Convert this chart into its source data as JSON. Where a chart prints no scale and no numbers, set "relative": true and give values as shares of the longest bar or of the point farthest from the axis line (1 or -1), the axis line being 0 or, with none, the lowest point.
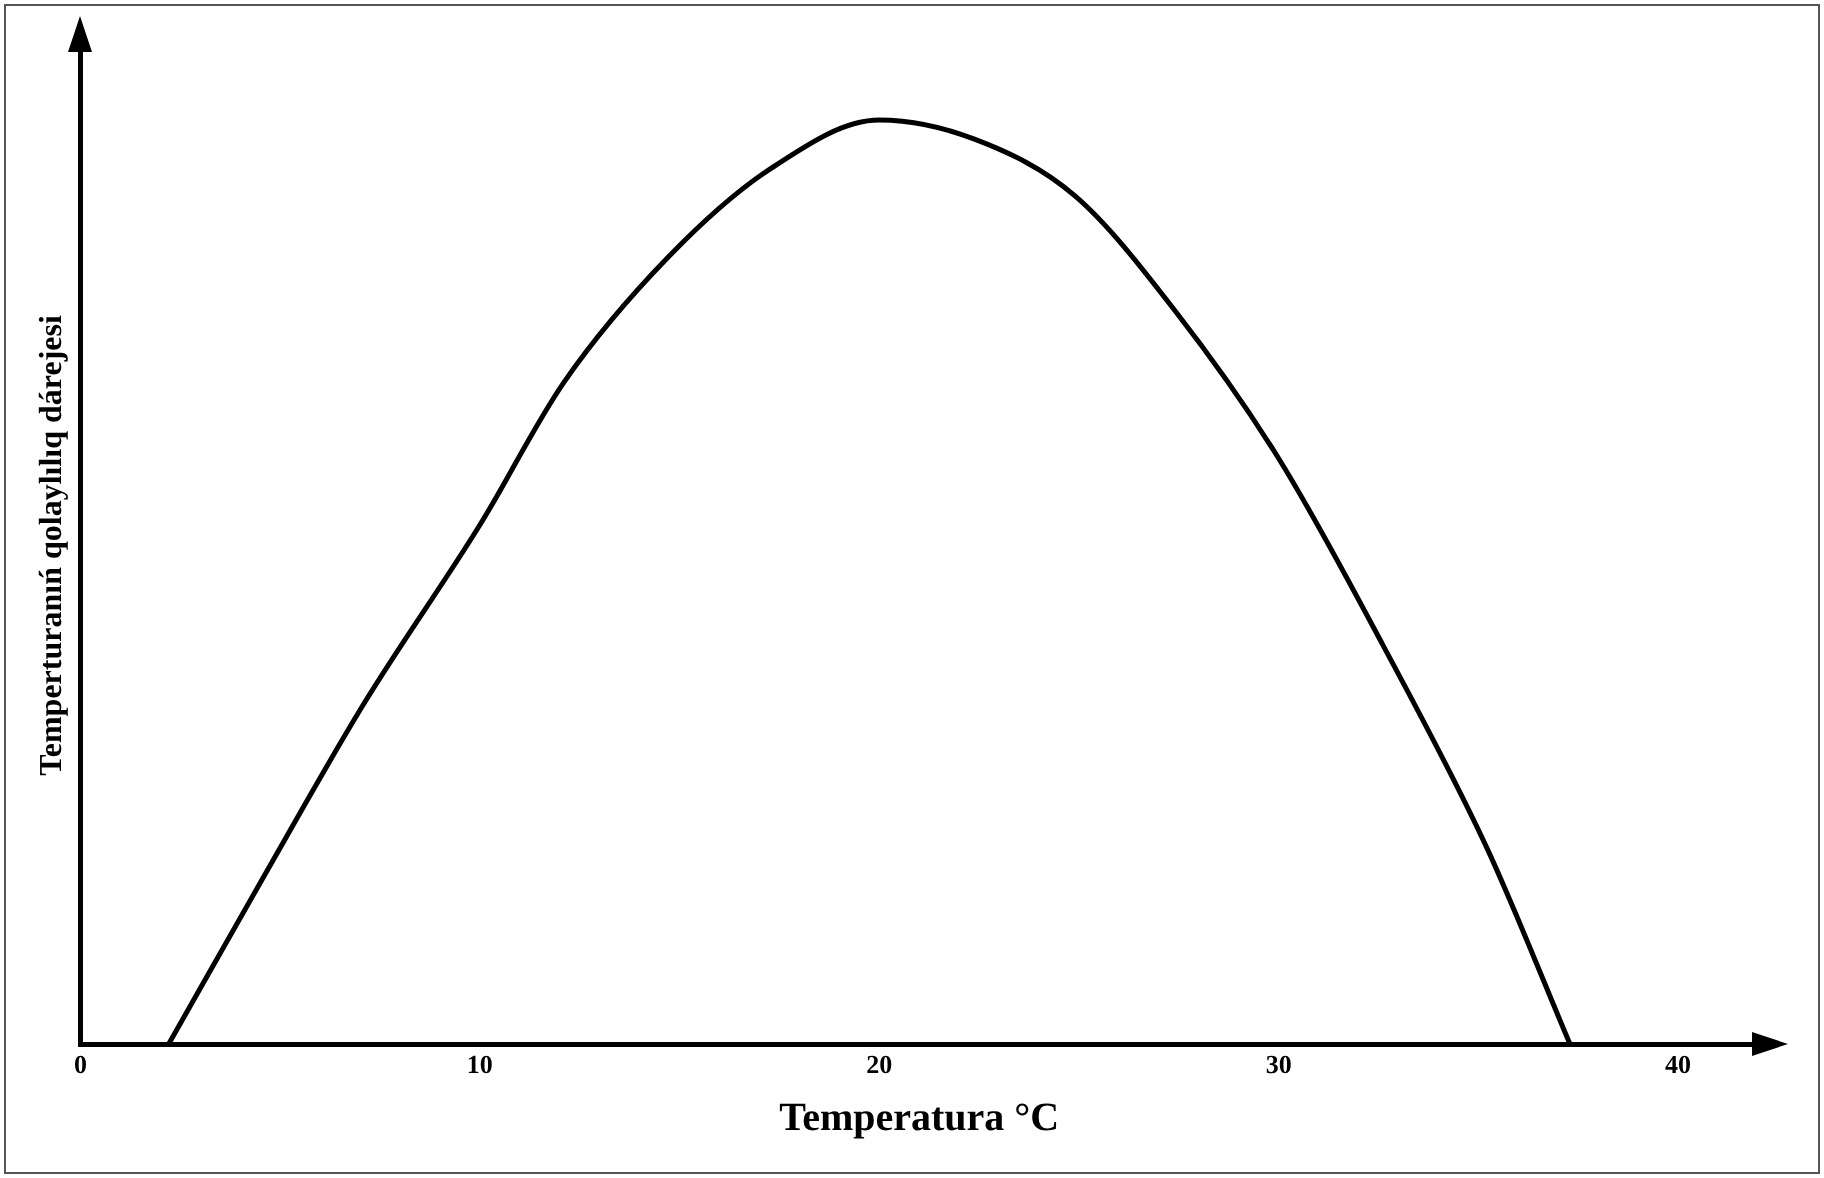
{
  "chart_data": {
    "type": "line",
    "xlabel": "Temperatura °C",
    "ylabel": "Temperturanıń qolaylılıq dárejesi",
    "relative": true,
    "x": [
      2.2,
      4.5,
      7.1,
      10,
      12.1,
      14.7,
      17.3,
      20,
      22.4,
      24.9,
      27.4,
      30,
      32.6,
      35.2,
      37.3
    ],
    "series": [
      {
        "color": "#000000",
        "values": [
          0,
          0.175,
          0.369,
          0.562,
          0.716,
          0.851,
          0.948,
          1,
          0.979,
          0.918,
          0.794,
          0.634,
          0.433,
          0.214,
          0
        ]
      }
    ],
    "xlim": [
      0,
      42
    ],
    "xticks": [
      0,
      10,
      20,
      30,
      40
    ],
    "grid": false,
    "legend": false,
    "marker": "none",
    "line_style": "solid"
  }
}
